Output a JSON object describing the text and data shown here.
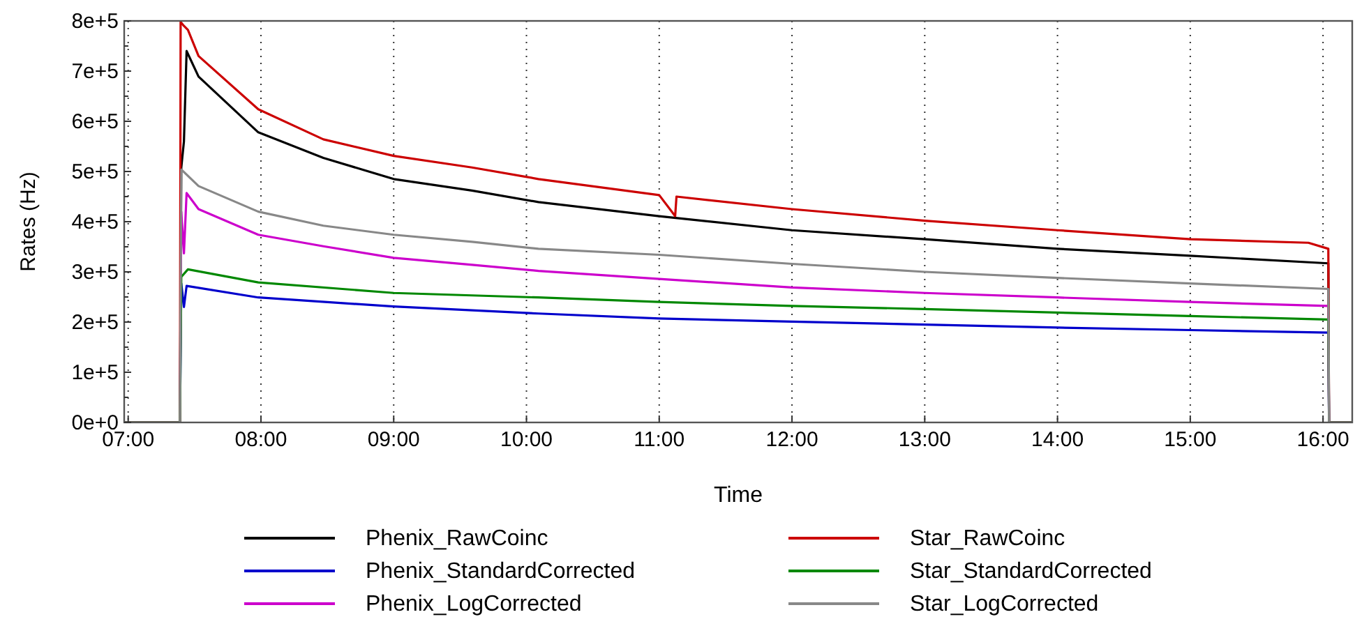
{
  "chart_data": {
    "type": "line",
    "xlabel": "Time",
    "ylabel": "Rates (Hz)",
    "xlim": [
      6.97,
      16.22
    ],
    "ylim": [
      0,
      800000
    ],
    "xticks": [
      {
        "value": 7,
        "label": "07:00"
      },
      {
        "value": 8,
        "label": "08:00"
      },
      {
        "value": 9,
        "label": "09:00"
      },
      {
        "value": 10,
        "label": "10:00"
      },
      {
        "value": 11,
        "label": "11:00"
      },
      {
        "value": 12,
        "label": "12:00"
      },
      {
        "value": 13,
        "label": "13:00"
      },
      {
        "value": 14,
        "label": "14:00"
      },
      {
        "value": 15,
        "label": "15:00"
      },
      {
        "value": 16,
        "label": "16:00"
      }
    ],
    "yticks": [
      {
        "value": 0,
        "label": "0e+0"
      },
      {
        "value": 50000,
        "label": null
      },
      {
        "value": 100000,
        "label": "1e+5"
      },
      {
        "value": 150000,
        "label": null
      },
      {
        "value": 200000,
        "label": "2e+5"
      },
      {
        "value": 250000,
        "label": null
      },
      {
        "value": 300000,
        "label": "3e+5"
      },
      {
        "value": 350000,
        "label": null
      },
      {
        "value": 400000,
        "label": "4e+5"
      },
      {
        "value": 450000,
        "label": null
      },
      {
        "value": 500000,
        "label": "5e+5"
      },
      {
        "value": 550000,
        "label": null
      },
      {
        "value": 600000,
        "label": "6e+5"
      },
      {
        "value": 650000,
        "label": null
      },
      {
        "value": 700000,
        "label": "7e+5"
      },
      {
        "value": 750000,
        "label": null
      },
      {
        "value": 800000,
        "label": "8e+5"
      }
    ],
    "grid": "x",
    "legend": "bottom",
    "marker": "none",
    "line_style": "solid",
    "series": [
      {
        "name": "Phenix_RawCoinc",
        "color": "#000000",
        "x": [
          6.97,
          7.39,
          7.4,
          7.42,
          7.44,
          7.53,
          7.98,
          8.47,
          9.0,
          9.59,
          10.09,
          11.0,
          12.0,
          13.0,
          14.0,
          15.0,
          16.04,
          16.045,
          16.22
        ],
        "values": [
          0,
          0,
          508000,
          560000,
          740000,
          689000,
          578000,
          527000,
          485000,
          462000,
          439000,
          411000,
          383000,
          365000,
          346000,
          332000,
          317000,
          0,
          0
        ]
      },
      {
        "name": "Phenix_StandardCorrected",
        "color": "#0000cc",
        "x": [
          6.97,
          7.39,
          7.4,
          7.42,
          7.44,
          7.98,
          9.0,
          10.09,
          11.0,
          12.0,
          13.0,
          14.0,
          15.0,
          16.04,
          16.045,
          16.22
        ],
        "values": [
          0,
          0,
          277000,
          230000,
          272000,
          249000,
          231000,
          217000,
          207000,
          201000,
          195000,
          189000,
          184000,
          179000,
          0,
          0
        ]
      },
      {
        "name": "Phenix_LogCorrected",
        "color": "#cc00cc",
        "x": [
          6.97,
          7.39,
          7.4,
          7.42,
          7.44,
          7.53,
          7.98,
          8.47,
          9.0,
          9.59,
          10.09,
          11.0,
          12.0,
          13.0,
          14.0,
          15.0,
          16.04,
          16.045,
          16.22
        ],
        "values": [
          0,
          0,
          420000,
          337000,
          457000,
          425000,
          374000,
          351000,
          328000,
          314000,
          302000,
          286000,
          269000,
          258000,
          249000,
          240000,
          232000,
          0,
          0
        ]
      },
      {
        "name": "Star_RawCoinc",
        "color": "#cc0000",
        "x": [
          6.97,
          7.39,
          7.395,
          7.42,
          7.45,
          7.53,
          7.98,
          8.47,
          9.0,
          9.59,
          10.09,
          11.0,
          11.12,
          11.13,
          12.0,
          13.0,
          14.0,
          15.0,
          15.89,
          16.04,
          16.045,
          16.22
        ],
        "values": [
          0,
          0,
          798000,
          790000,
          782000,
          730000,
          624000,
          564000,
          531000,
          508000,
          485000,
          453000,
          411000,
          450000,
          425000,
          402000,
          383000,
          365000,
          358000,
          346000,
          0,
          0
        ]
      },
      {
        "name": "Star_StandardCorrected",
        "color": "#008800",
        "x": [
          6.97,
          7.39,
          7.4,
          7.45,
          7.98,
          9.0,
          10.09,
          11.0,
          12.0,
          13.0,
          14.0,
          15.0,
          16.04,
          16.045,
          16.22
        ],
        "values": [
          0,
          0,
          290000,
          305000,
          279000,
          258000,
          249000,
          240000,
          232000,
          226000,
          219000,
          212000,
          205000,
          0,
          0
        ]
      },
      {
        "name": "Star_LogCorrected",
        "color": "#888888",
        "x": [
          6.97,
          7.39,
          7.4,
          7.53,
          7.98,
          8.47,
          9.0,
          9.59,
          10.09,
          11.0,
          12.0,
          13.0,
          14.0,
          15.0,
          16.04,
          16.045,
          16.22
        ],
        "values": [
          0,
          0,
          504000,
          471000,
          420000,
          392000,
          374000,
          360000,
          346000,
          334000,
          316000,
          300000,
          288000,
          277000,
          266000,
          0,
          0
        ]
      }
    ]
  }
}
